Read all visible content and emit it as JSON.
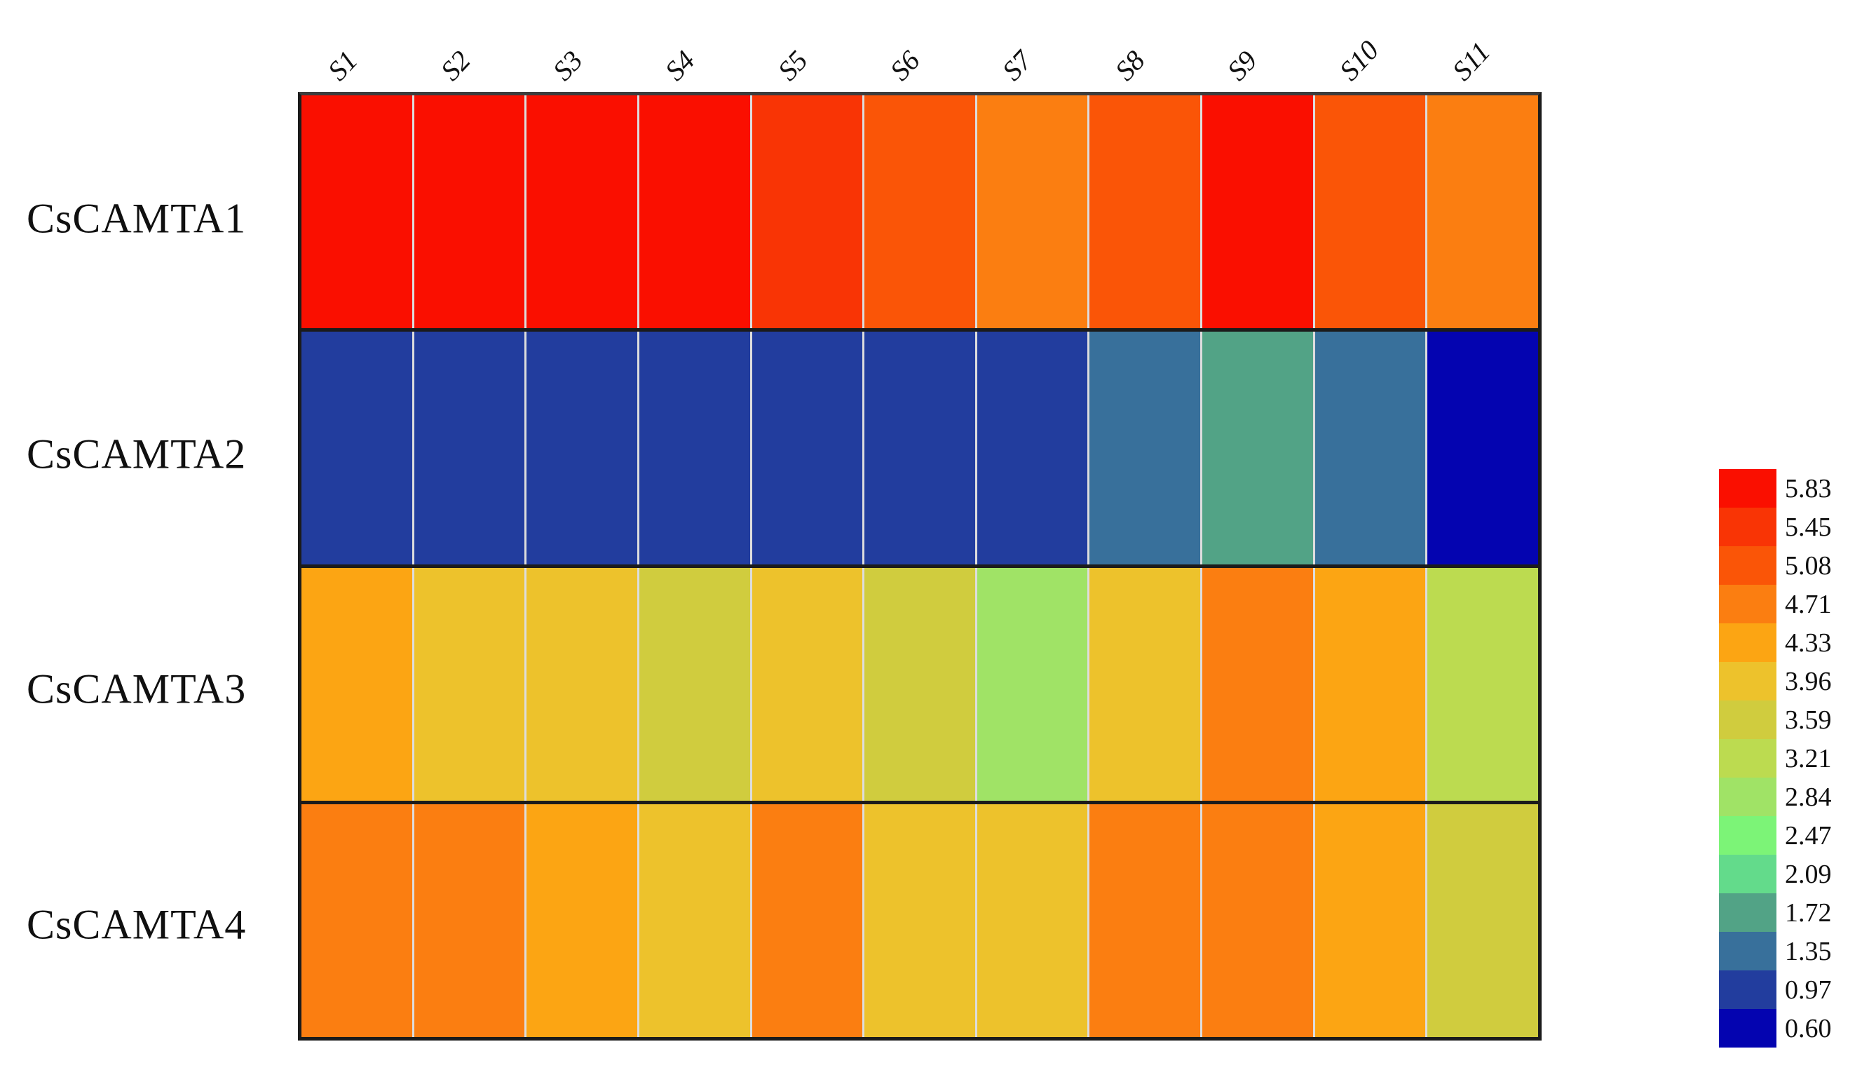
{
  "figure": {
    "kind": "gene-expression-heatmap",
    "background": "#ffffff",
    "grid_line_color_vertical": "#f5f0e8",
    "grid_line_color_horizontal": "#1b1b1b"
  },
  "chart_data": {
    "type": "heatmap",
    "title": "",
    "xlabel": "",
    "ylabel": "",
    "categories": [
      "S1",
      "S2",
      "S3",
      "S4",
      "S5",
      "S6",
      "S7",
      "S8",
      "S9",
      "S10",
      "S11"
    ],
    "rows": [
      "CsCAMTA1",
      "CsCAMTA2",
      "CsCAMTA3",
      "CsCAMTA4"
    ],
    "series": [
      {
        "name": "CsCAMTA1",
        "values": [
          5.83,
          5.83,
          5.83,
          5.83,
          5.45,
          5.08,
          4.71,
          5.08,
          5.83,
          5.08,
          4.71
        ]
      },
      {
        "name": "CsCAMTA2",
        "values": [
          0.97,
          0.97,
          0.97,
          0.97,
          0.97,
          0.97,
          0.97,
          1.35,
          1.72,
          1.35,
          0.6
        ]
      },
      {
        "name": "CsCAMTA3",
        "values": [
          4.33,
          3.96,
          3.96,
          3.59,
          3.96,
          3.59,
          2.84,
          3.96,
          4.71,
          4.33,
          3.21
        ]
      },
      {
        "name": "CsCAMTA4",
        "values": [
          4.71,
          4.71,
          4.33,
          3.96,
          4.71,
          3.96,
          3.96,
          4.71,
          4.71,
          4.33,
          3.59
        ]
      }
    ],
    "legend_position": "right",
    "legend": [
      {
        "value": "5.83",
        "color": "#FA0F00"
      },
      {
        "value": "5.45",
        "color": "#F93405"
      },
      {
        "value": "5.08",
        "color": "#FA5507"
      },
      {
        "value": "4.71",
        "color": "#FB7E11"
      },
      {
        "value": "4.33",
        "color": "#FCA513"
      },
      {
        "value": "3.96",
        "color": "#EDC22C"
      },
      {
        "value": "3.59",
        "color": "#D0CC3E"
      },
      {
        "value": "3.21",
        "color": "#BCDB50"
      },
      {
        "value": "2.84",
        "color": "#A0E366"
      },
      {
        "value": "2.47",
        "color": "#7CF477"
      },
      {
        "value": "2.09",
        "color": "#63DB8B"
      },
      {
        "value": "1.72",
        "color": "#52A386"
      },
      {
        "value": "1.35",
        "color": "#38709B"
      },
      {
        "value": "0.97",
        "color": "#223D9E"
      },
      {
        "value": "0.60",
        "color": "#0404B0"
      }
    ]
  }
}
